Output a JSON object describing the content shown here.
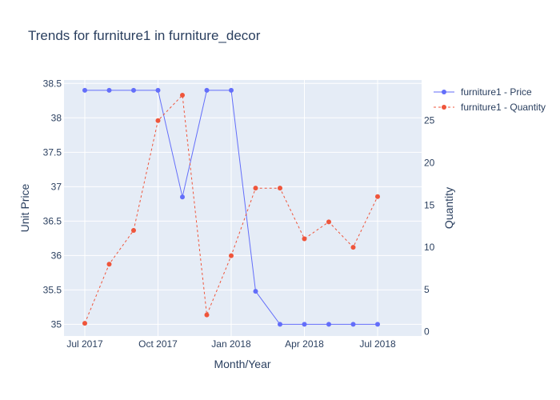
{
  "chart_data": {
    "type": "line",
    "title": "Trends for furniture1 in furniture_decor",
    "xlabel": "Month/Year",
    "ylabel": "Unit Price",
    "y2label": "Quantity",
    "x": [
      "2017-07",
      "2017-08",
      "2017-09",
      "2017-10",
      "2017-11",
      "2018-01",
      "2018-02",
      "2018-03",
      "2018-04",
      "2018-05",
      "2018-06",
      "2018-07",
      "2018-08"
    ],
    "x_tick_labels": [
      "Jul 2017",
      "Oct 2017",
      "Jan 2018",
      "Apr 2018",
      "Jul 2018"
    ],
    "y_ticks": [
      "35",
      "35.5",
      "36",
      "36.5",
      "37",
      "37.5",
      "38",
      "38.5"
    ],
    "y2_ticks": [
      "0",
      "5",
      "10",
      "15",
      "20",
      "25"
    ],
    "ylim": [
      34.83,
      38.55
    ],
    "y2lim": [
      -0.5,
      29.8
    ],
    "grid": true,
    "legend_position": "top-right",
    "series": [
      {
        "name": "furniture1 - Price",
        "axis": "left",
        "style": "solid",
        "color": "#636efa",
        "values": [
          38.4,
          38.4,
          38.4,
          38.4,
          36.85,
          38.4,
          38.4,
          35.48,
          35.0,
          35.0,
          35.0,
          35.0,
          35.0
        ]
      },
      {
        "name": "furniture1 - Quantity",
        "axis": "right",
        "style": "dashed",
        "color": "#ef553b",
        "values": [
          1,
          8,
          12,
          25,
          28,
          2,
          9,
          17,
          17,
          11,
          13,
          10,
          16
        ]
      }
    ],
    "plot_bg": "#e5ecf6"
  }
}
